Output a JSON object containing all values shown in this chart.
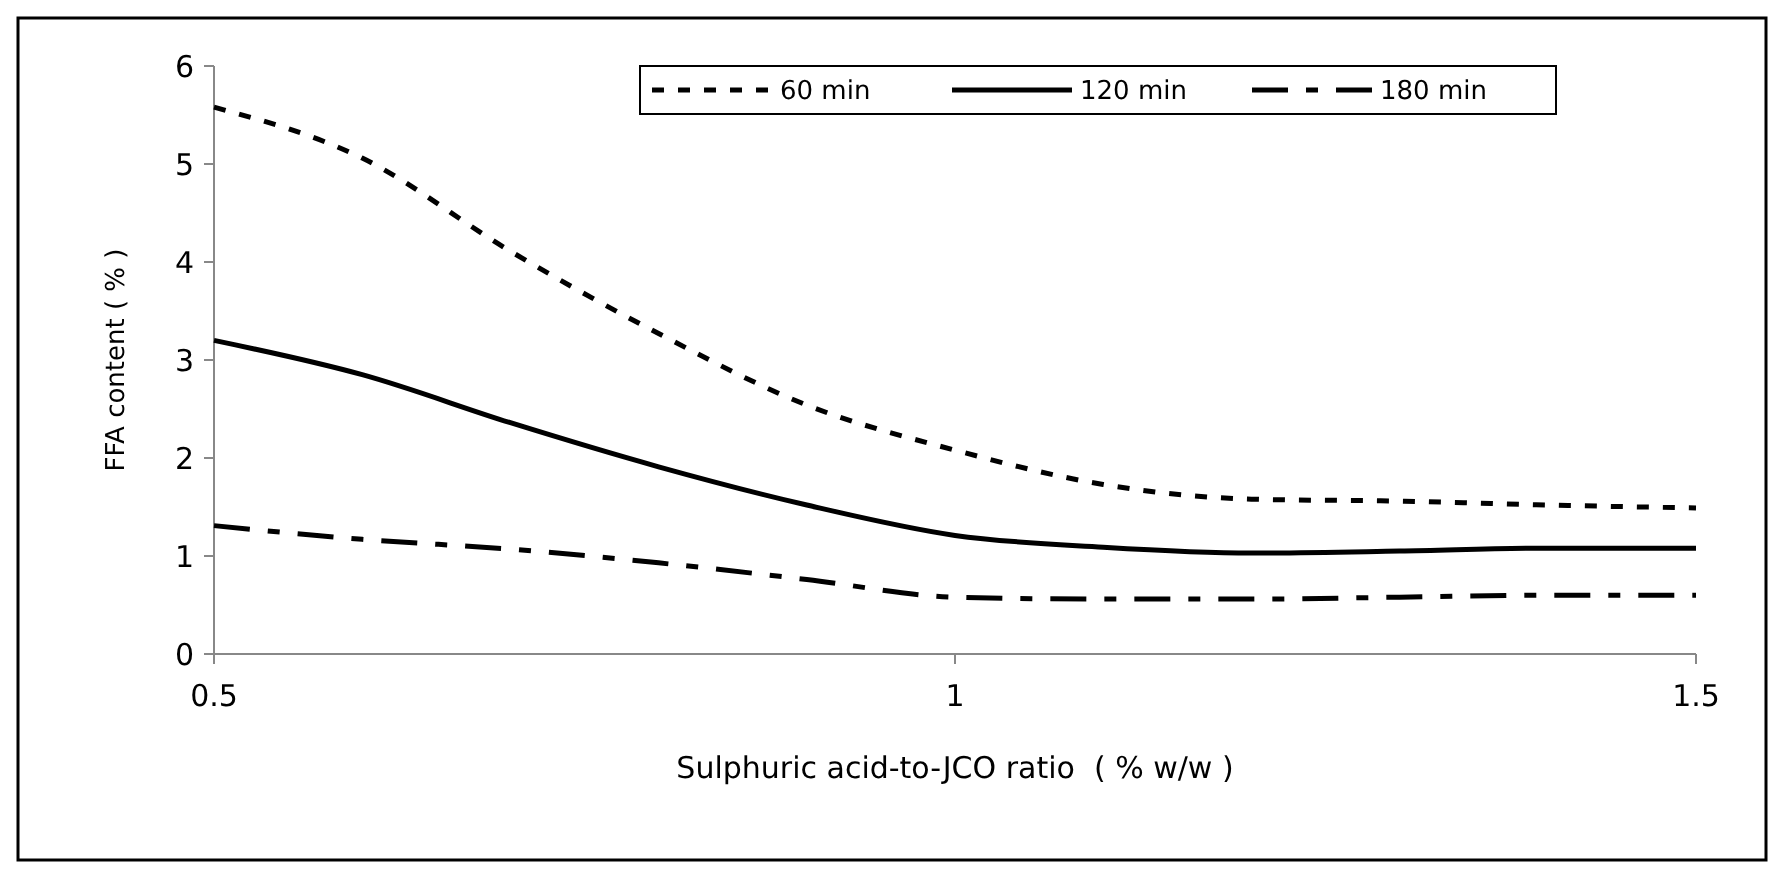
{
  "chart_data": {
    "type": "line",
    "xlabel": "Sulphuric acid-to-JCO ratio  ( % w/w )",
    "ylabel": "FFA content ( % )",
    "x": [
      0.5,
      0.6,
      0.7,
      0.8,
      0.9,
      1.0,
      1.1,
      1.2,
      1.3,
      1.4,
      1.5
    ],
    "series": [
      {
        "name": "60 min",
        "color": "#000000",
        "line_style": "dotted",
        "values": [
          5.58,
          5.06,
          4.11,
          3.27,
          2.54,
          2.08,
          1.73,
          1.58,
          1.56,
          1.52,
          1.49
        ]
      },
      {
        "name": "120 min",
        "color": "#000000",
        "line_style": "solid",
        "values": [
          3.2,
          2.85,
          2.36,
          1.91,
          1.52,
          1.21,
          1.09,
          1.03,
          1.05,
          1.08,
          1.08
        ]
      },
      {
        "name": "180 min",
        "color": "#000000",
        "line_style": "dashed",
        "values": [
          1.31,
          1.17,
          1.07,
          0.93,
          0.76,
          0.58,
          0.56,
          0.56,
          0.58,
          0.6,
          0.6
        ]
      }
    ],
    "xlim": [
      0.5,
      1.5
    ],
    "xticks": [
      0.5,
      1,
      1.5
    ],
    "ylim": [
      0,
      6
    ],
    "yticks": [
      0,
      1,
      2,
      3,
      4,
      5,
      6
    ],
    "grid": false,
    "legend": "top right",
    "marker": "none"
  }
}
